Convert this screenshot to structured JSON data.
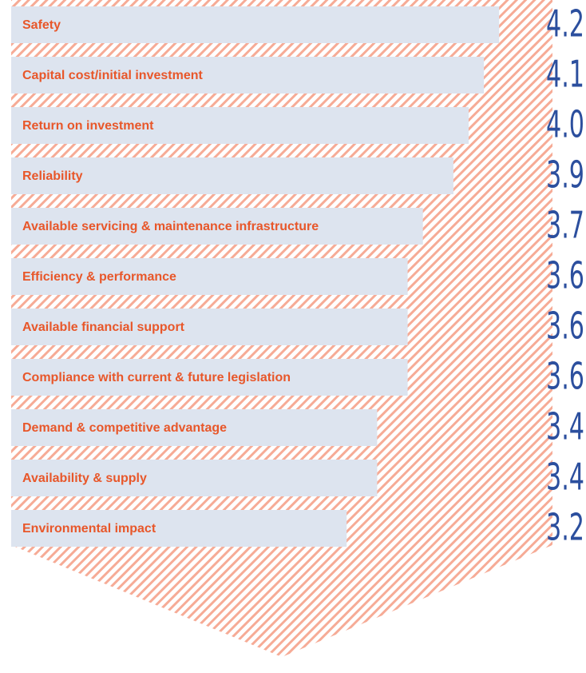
{
  "chart_data": {
    "type": "bar",
    "orientation": "horizontal",
    "categories": [
      "Safety",
      "Capital cost/initial investment",
      "Return on investment",
      "Reliability",
      "Available servicing & maintenance infrastructure",
      "Efficiency & performance",
      "Available financial support",
      "Compliance with current & future legislation",
      "Demand & competitive advantage",
      "Availability & supply",
      "Environmental impact"
    ],
    "values": [
      4.2,
      4.1,
      4.0,
      3.9,
      3.7,
      3.6,
      3.6,
      3.6,
      3.4,
      3.4,
      3.2
    ],
    "value_labels": [
      "4.2",
      "4.1",
      "4.0",
      "3.9",
      "3.7",
      "3.6",
      "3.6",
      "3.6",
      "3.4",
      "3.4",
      "3.2"
    ],
    "color": "#dde4ef",
    "label_color": "#e8572a",
    "value_color": "#2c4f9e",
    "hatch_color": "#f6ab96",
    "xlim": [
      1,
      5
    ]
  }
}
